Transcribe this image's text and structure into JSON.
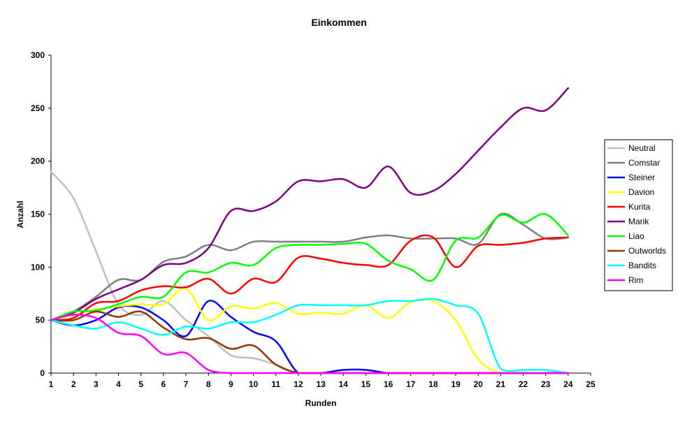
{
  "chart_data": {
    "type": "line",
    "title": "Einkommen",
    "xlabel": "Runden",
    "ylabel": "Anzahl",
    "xlim": [
      1,
      25
    ],
    "ylim": [
      0,
      300
    ],
    "x_ticks": [
      1,
      2,
      3,
      4,
      5,
      6,
      7,
      8,
      9,
      10,
      11,
      12,
      13,
      14,
      15,
      16,
      17,
      18,
      19,
      20,
      21,
      22,
      23,
      24,
      25
    ],
    "y_ticks": [
      0,
      50,
      100,
      150,
      200,
      250,
      300
    ],
    "grid": false,
    "legend_position": "right",
    "x": [
      1,
      2,
      3,
      4,
      5,
      6,
      7,
      8,
      9,
      10,
      11,
      12,
      13,
      14,
      15,
      16,
      17,
      18,
      19,
      20,
      21,
      22,
      23,
      24
    ],
    "series": [
      {
        "name": "Neutral",
        "color": "#c0c0c0",
        "values": [
          190,
          165,
          115,
          65,
          55,
          68,
          50,
          35,
          17,
          14,
          8,
          0,
          0,
          0,
          0,
          0,
          0,
          0,
          0,
          0,
          0,
          0,
          0,
          0
        ]
      },
      {
        "name": "Comstar",
        "color": "#808080",
        "values": [
          50,
          58,
          72,
          88,
          88,
          105,
          110,
          121,
          116,
          124,
          124,
          124,
          124,
          124,
          128,
          130,
          127,
          127,
          127,
          122,
          150,
          140,
          127,
          128
        ]
      },
      {
        "name": "Steiner",
        "color": "#0000ff",
        "values": [
          50,
          45,
          50,
          62,
          62,
          50,
          35,
          68,
          53,
          39,
          30,
          0,
          0,
          3,
          3,
          0,
          0,
          0,
          0,
          0,
          0,
          0,
          0,
          0
        ]
      },
      {
        "name": "Davion",
        "color": "#ffff00",
        "values": [
          50,
          55,
          60,
          63,
          65,
          65,
          80,
          50,
          63,
          61,
          66,
          56,
          57,
          56,
          64,
          52,
          67,
          68,
          50,
          13,
          0,
          0,
          0,
          0
        ]
      },
      {
        "name": "Kurita",
        "color": "#ff0000",
        "values": [
          50,
          52,
          66,
          68,
          78,
          82,
          81,
          89,
          75,
          89,
          86,
          109,
          108,
          104,
          102,
          102,
          125,
          128,
          100,
          120,
          121,
          123,
          127,
          128
        ]
      },
      {
        "name": "Marik",
        "color": "#800080",
        "values": [
          50,
          57,
          70,
          79,
          88,
          102,
          104,
          118,
          153,
          153,
          162,
          181,
          181,
          183,
          175,
          195,
          170,
          172,
          188,
          210,
          232,
          250,
          248,
          269
        ]
      },
      {
        "name": "Liao",
        "color": "#00ff00",
        "values": [
          50,
          58,
          59,
          65,
          72,
          72,
          95,
          95,
          104,
          102,
          118,
          121,
          121,
          122,
          122,
          106,
          98,
          88,
          125,
          128,
          149,
          142,
          150,
          130
        ]
      },
      {
        "name": "Outworlds",
        "color": "#993300",
        "values": [
          50,
          50,
          58,
          53,
          58,
          43,
          32,
          33,
          23,
          26,
          8,
          0,
          0,
          0,
          0,
          0,
          0,
          0,
          0,
          0,
          0,
          0,
          0,
          0
        ]
      },
      {
        "name": "Bandits",
        "color": "#00ffff",
        "values": [
          50,
          45,
          42,
          48,
          42,
          36,
          44,
          42,
          48,
          48,
          55,
          64,
          64,
          64,
          64,
          68,
          68,
          70,
          64,
          56,
          4,
          3,
          3,
          0
        ]
      },
      {
        "name": "Rim",
        "color": "#ff00ff",
        "values": [
          50,
          55,
          52,
          38,
          35,
          18,
          19,
          3,
          0,
          0,
          0,
          0,
          0,
          0,
          0,
          0,
          0,
          0,
          0,
          0,
          0,
          0,
          0,
          0
        ]
      }
    ]
  }
}
